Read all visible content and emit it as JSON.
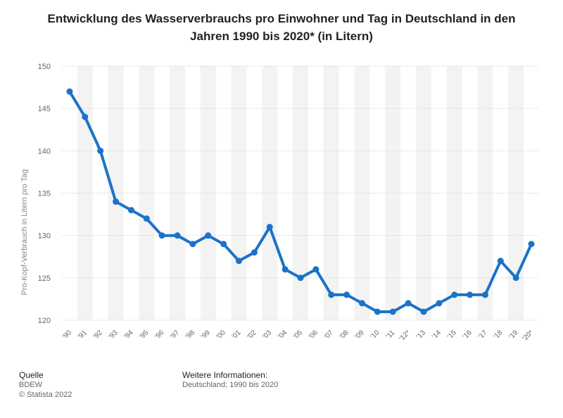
{
  "title": "Entwicklung des Wasserverbrauchs pro Einwohner und Tag in Deutschland in den Jahren 1990 bis 2020* (in Litern)",
  "footer": {
    "source_heading": "Quelle",
    "source": "BDEW",
    "copyright": "© Statista 2022",
    "info_heading": "Weitere Informationen:",
    "info": "Deutschland; 1990 bis 2020"
  },
  "colors": {
    "line": "#1a73c9",
    "grid": "#cfcfcf",
    "band": "#f3f3f3"
  },
  "chart_data": {
    "type": "line",
    "title": "Entwicklung des Wasserverbrauchs pro Einwohner und Tag in Deutschland in den Jahren 1990 bis 2020* (in Litern)",
    "xlabel": "",
    "ylabel": "Pro-Kopf-Verbrauch in Litern pro Tag",
    "ylim": [
      120,
      150
    ],
    "yticks": [
      120,
      125,
      130,
      135,
      140,
      145,
      150
    ],
    "categories": [
      "'90",
      "'91",
      "'92",
      "'93",
      "'94",
      "'95",
      "'96",
      "'97",
      "'98",
      "'99",
      "'00",
      "'01",
      "'02",
      "'03",
      "'04",
      "'05",
      "'06",
      "'07",
      "'08",
      "'09",
      "'10",
      "'11",
      "'12*",
      "'13",
      "'14",
      "'15",
      "'16",
      "'17",
      "'18",
      "'19",
      "'20*"
    ],
    "series": [
      {
        "name": "Pro-Kopf-Verbrauch",
        "values": [
          147,
          144,
          140,
          134,
          133,
          132,
          130,
          130,
          129,
          130,
          129,
          127,
          128,
          131,
          126,
          125,
          126,
          123,
          123,
          122,
          121,
          121,
          122,
          121,
          122,
          123,
          123,
          123,
          127,
          125,
          129
        ]
      }
    ]
  }
}
